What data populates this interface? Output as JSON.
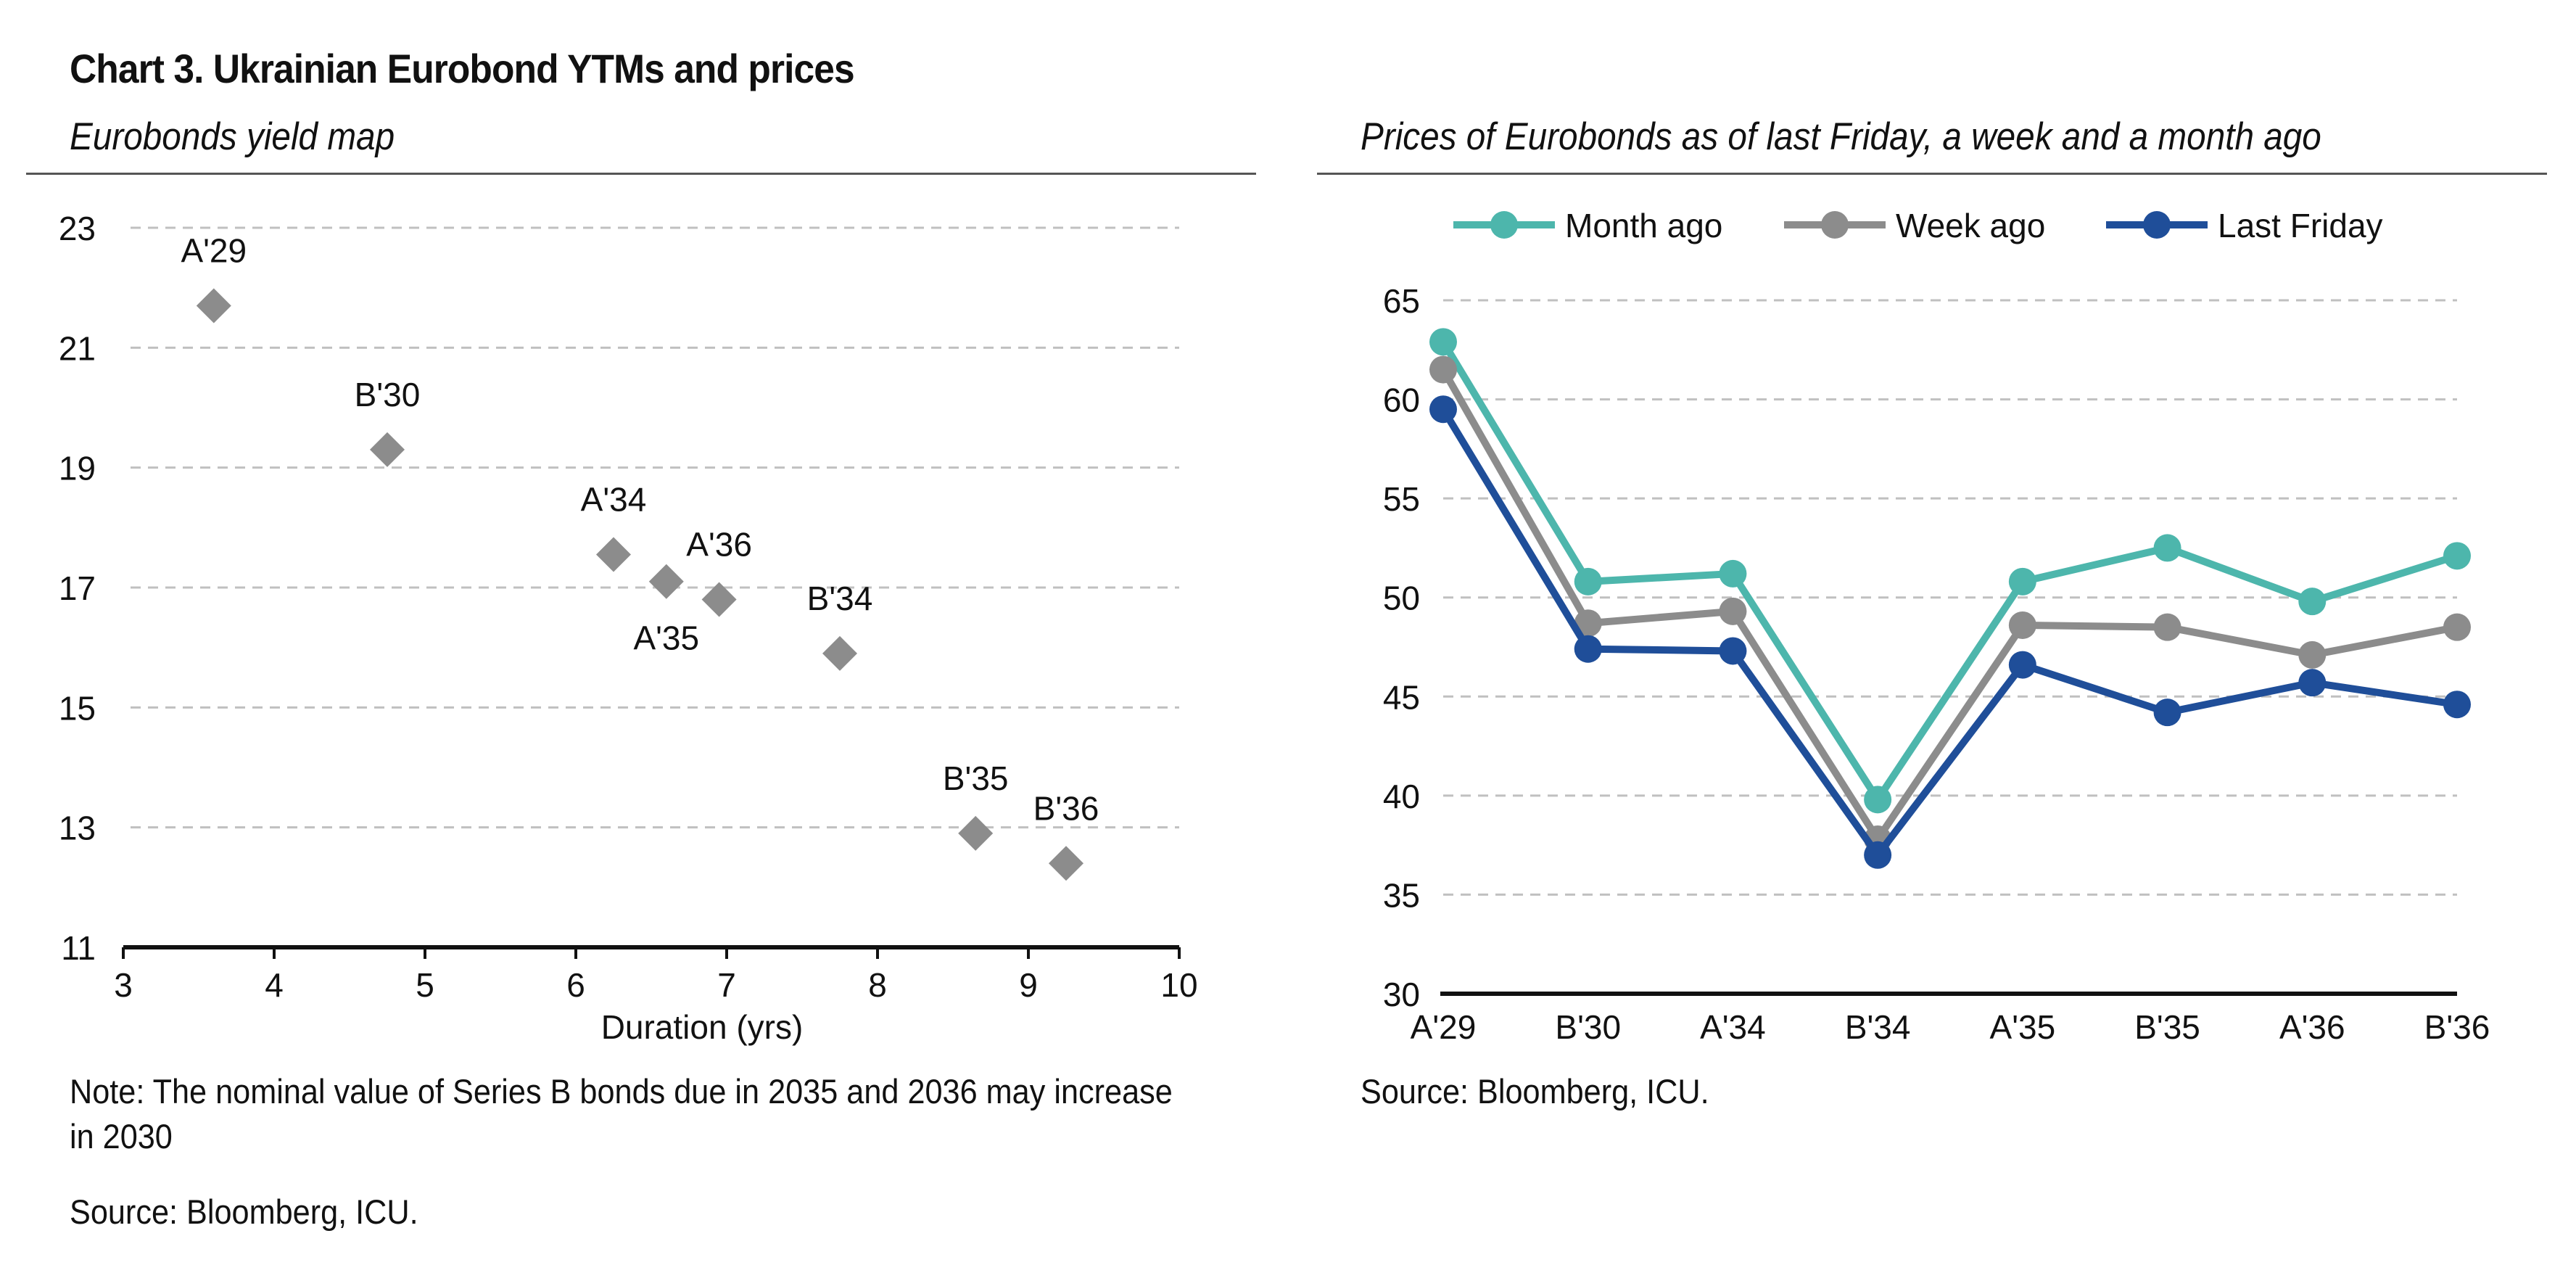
{
  "header": {
    "title": "Chart 3. Ukrainian Eurobond YTMs and prices"
  },
  "left_panel": {
    "subtitle": "Eurobonds yield map",
    "note": "Note: The nominal value of Series B bonds due in 2035 and 2036 may increase in 2030",
    "source": "Source: Bloomberg, ICU."
  },
  "right_panel": {
    "subtitle": "Prices of Eurobonds as of last Friday, a week and a month ago",
    "source": "Source: Bloomberg, ICU."
  },
  "colors": {
    "month_ago": "#4db6ac",
    "week_ago": "#8c8c8c",
    "last_friday": "#1f4e99",
    "scatter_marker": "#8c8c8c",
    "grid": "#c0c0c0"
  },
  "chart_data": [
    {
      "type": "scatter",
      "title": "Eurobonds yield map",
      "xlabel": "Duration (yrs)",
      "ylabel": "",
      "xlim": [
        3,
        10
      ],
      "ylim": [
        11,
        23
      ],
      "x_ticks": [
        3,
        4,
        5,
        6,
        7,
        8,
        9,
        10
      ],
      "y_ticks": [
        11,
        13,
        15,
        17,
        19,
        21,
        23
      ],
      "grid": true,
      "points": [
        {
          "label": "A'29",
          "x": 3.6,
          "y": 21.7
        },
        {
          "label": "B'30",
          "x": 4.75,
          "y": 19.3
        },
        {
          "label": "A'34",
          "x": 6.25,
          "y": 17.55
        },
        {
          "label": "A'35",
          "x": 6.6,
          "y": 17.1
        },
        {
          "label": "A'36",
          "x": 6.95,
          "y": 16.8
        },
        {
          "label": "B'34",
          "x": 7.75,
          "y": 15.9
        },
        {
          "label": "B'35",
          "x": 8.65,
          "y": 12.9
        },
        {
          "label": "B'36",
          "x": 9.25,
          "y": 12.4
        }
      ]
    },
    {
      "type": "line",
      "title": "Prices of Eurobonds as of last Friday, a week and a month ago",
      "categories": [
        "A'29",
        "B'30",
        "A'34",
        "B'34",
        "A'35",
        "B'35",
        "A'36",
        "B'36"
      ],
      "ylim": [
        30,
        65
      ],
      "y_ticks": [
        30,
        35,
        40,
        45,
        50,
        55,
        60,
        65
      ],
      "grid": true,
      "legend": "top",
      "series": [
        {
          "name": "Month ago",
          "values": [
            62.9,
            50.8,
            51.2,
            39.8,
            50.8,
            52.5,
            49.8,
            52.1
          ]
        },
        {
          "name": "Week ago",
          "values": [
            61.5,
            48.7,
            49.3,
            37.8,
            48.6,
            48.5,
            47.1,
            48.5
          ]
        },
        {
          "name": "Last Friday",
          "values": [
            59.5,
            47.4,
            47.3,
            37.0,
            46.6,
            44.2,
            45.7,
            44.6
          ]
        }
      ]
    }
  ]
}
